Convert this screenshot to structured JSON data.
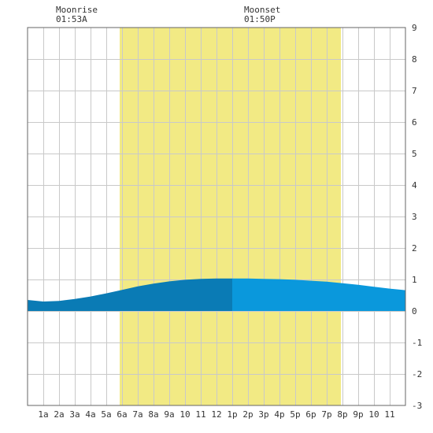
{
  "chart_data": {
    "type": "area",
    "title": "",
    "xlabel": "",
    "ylabel": "",
    "x_ticks": [
      "1a",
      "2a",
      "3a",
      "4a",
      "5a",
      "6a",
      "7a",
      "8a",
      "9a",
      "10",
      "11",
      "12",
      "1p",
      "2p",
      "3p",
      "4p",
      "5p",
      "6p",
      "7p",
      "8p",
      "9p",
      "10",
      "11"
    ],
    "y_ticks": [
      "9",
      "8",
      "7",
      "6",
      "5",
      "4",
      "3",
      "2",
      "1",
      "0",
      "-1",
      "-2",
      "-3"
    ],
    "xlim": [
      0,
      24
    ],
    "ylim": [
      -3,
      9
    ],
    "grid": true,
    "daylight": {
      "start_hour": 5.85,
      "end_hour": 19.9,
      "color": "#f2ea84"
    },
    "moon": {
      "rise_label": "Moonrise",
      "rise_time": "01:53A",
      "set_label": "Moonset",
      "set_time": "01:50P"
    },
    "colors": {
      "tide_before_noon": "#0a7bb5",
      "tide_after_noon": "#0a98dc",
      "grid": "#c9c9c9"
    },
    "series": [
      {
        "x": [
          0,
          1,
          2,
          3,
          4,
          5,
          6,
          7,
          8,
          9,
          10,
          11,
          12,
          13,
          14,
          15,
          16,
          17,
          18,
          19,
          20,
          21,
          22,
          23,
          24
        ],
        "values": [
          0.35,
          0.3,
          0.32,
          0.38,
          0.46,
          0.56,
          0.67,
          0.78,
          0.87,
          0.94,
          0.99,
          1.02,
          1.03,
          1.03,
          1.03,
          1.02,
          1.01,
          0.99,
          0.96,
          0.93,
          0.88,
          0.83,
          0.77,
          0.71,
          0.66
        ]
      }
    ]
  }
}
